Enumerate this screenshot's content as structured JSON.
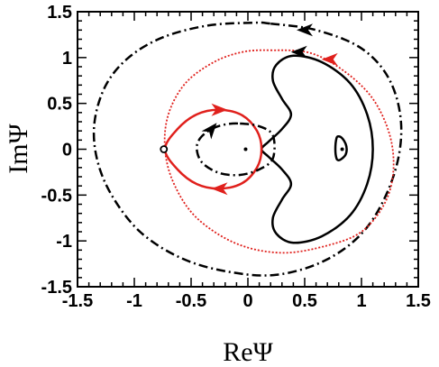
{
  "chart_data": {
    "type": "line",
    "title": "",
    "xlabel": "ReΨ",
    "ylabel": "ImΨ",
    "xlim": [
      -1.5,
      1.5
    ],
    "ylim": [
      -1.5,
      1.5
    ],
    "xticks": [
      -1.5,
      -1,
      -0.5,
      0,
      0.5,
      1,
      1.5
    ],
    "yticks": [
      -1.5,
      -1,
      -0.5,
      0,
      0.5,
      1,
      1.5
    ],
    "xtick_labels": [
      "-1.5",
      "-1",
      "-0.5",
      "0",
      "0.5",
      "1",
      "1.5"
    ],
    "ytick_labels": [
      "-1.5",
      "-1",
      "-0.5",
      "0",
      "0.5",
      "1",
      "1.5"
    ],
    "grid": false,
    "series": [
      {
        "style": "dash-dot",
        "color": "#000000",
        "arrow": "counterclockwise at top",
        "x": [
          0.2,
          0.6,
          1.0,
          1.25,
          1.35,
          1.28,
          1.05,
          0.7,
          0.25,
          -0.2,
          -0.6,
          -0.95,
          -1.2,
          -1.33,
          -1.35,
          -1.25,
          -1.05,
          -0.75,
          -0.35,
          0.05,
          0.2
        ],
        "y": [
          1.37,
          1.3,
          1.1,
          0.75,
          0.25,
          -0.3,
          -0.85,
          -1.2,
          -1.37,
          -1.33,
          -1.18,
          -0.9,
          -0.5,
          -0.1,
          0.3,
          0.7,
          1.0,
          1.22,
          1.35,
          1.38,
          1.37
        ]
      },
      {
        "style": "dotted",
        "color": "#e0201c",
        "arrow": "counterclockwise at top",
        "x": [
          0.2,
          0.55,
          0.85,
          1.1,
          1.25,
          1.28,
          1.2,
          1.0,
          0.7,
          0.3,
          -0.1,
          -0.45,
          -0.65,
          -0.73,
          -0.7,
          -0.55,
          -0.3,
          -0.05,
          0.2
        ],
        "y": [
          1.08,
          1.05,
          0.85,
          0.55,
          0.15,
          -0.25,
          -0.6,
          -0.9,
          -1.05,
          -1.13,
          -1.03,
          -0.75,
          -0.38,
          0.0,
          0.38,
          0.72,
          0.95,
          1.06,
          1.08
        ]
      },
      {
        "style": "solid",
        "color": "#000000",
        "arrow": "counterclockwise at top",
        "x": [
          0.4,
          0.65,
          0.9,
          1.05,
          1.1,
          1.05,
          0.9,
          0.65,
          0.4,
          0.25,
          0.22,
          0.3,
          0.38,
          0.3,
          0.18,
          0.12,
          0.18,
          0.3,
          0.38,
          0.3,
          0.22,
          0.25,
          0.4
        ],
        "y": [
          1.02,
          0.95,
          0.72,
          0.38,
          0.0,
          -0.38,
          -0.72,
          -0.95,
          -1.02,
          -0.92,
          -0.75,
          -0.55,
          -0.38,
          -0.22,
          -0.08,
          0.0,
          0.08,
          0.22,
          0.38,
          0.55,
          0.75,
          0.92,
          1.02
        ]
      },
      {
        "style": "solid",
        "color": "#e0201c",
        "arrow": "both branches",
        "x": [
          -0.73,
          -0.62,
          -0.45,
          -0.25,
          -0.05,
          0.08,
          0.12,
          0.08,
          -0.05,
          -0.25,
          -0.45,
          -0.62,
          -0.73
        ],
        "y": [
          0.0,
          0.22,
          0.38,
          0.43,
          0.37,
          0.2,
          0.0,
          -0.2,
          -0.37,
          -0.43,
          -0.38,
          -0.22,
          0.0
        ]
      },
      {
        "style": "dash-dot",
        "color": "#000000",
        "arrow": "at top-left",
        "x": [
          -0.07,
          0.1,
          0.22,
          0.22,
          0.1,
          -0.07,
          -0.25,
          -0.4,
          -0.45,
          -0.42,
          -0.32,
          -0.2,
          -0.07
        ],
        "y": [
          0.28,
          0.25,
          0.15,
          -0.1,
          -0.22,
          -0.28,
          -0.26,
          -0.15,
          0.0,
          0.12,
          0.22,
          0.27,
          0.28
        ]
      },
      {
        "style": "solid",
        "color": "#000000",
        "arrow": "none",
        "x": [
          0.78,
          0.8,
          0.83,
          0.86,
          0.87,
          0.86,
          0.83,
          0.8,
          0.78,
          0.77,
          0.78
        ],
        "y": [
          0.12,
          0.14,
          0.12,
          0.06,
          0.0,
          -0.06,
          -0.1,
          -0.12,
          -0.1,
          0.0,
          0.12
        ]
      }
    ],
    "points": [
      {
        "x": -0.74,
        "y": 0.0,
        "marker": "open-circle",
        "color": "#000000"
      },
      {
        "x": -0.02,
        "y": 0.0,
        "marker": "dot",
        "color": "#000000"
      },
      {
        "x": 0.83,
        "y": 0.0,
        "marker": "dot",
        "color": "#000000"
      }
    ],
    "arrows": [
      {
        "x": 0.5,
        "y": 1.3,
        "dir": "left",
        "color": "#000000"
      },
      {
        "x": 0.45,
        "y": 1.06,
        "dir": "left",
        "color": "#000000"
      },
      {
        "x": 0.72,
        "y": 0.98,
        "dir": "left",
        "color": "#e0201c"
      },
      {
        "x": -0.25,
        "y": 0.43,
        "dir": "right",
        "color": "#e0201c"
      },
      {
        "x": -0.25,
        "y": -0.43,
        "dir": "left",
        "color": "#e0201c"
      },
      {
        "x": -0.32,
        "y": 0.22,
        "dir": "up-right",
        "color": "#000000"
      }
    ]
  }
}
